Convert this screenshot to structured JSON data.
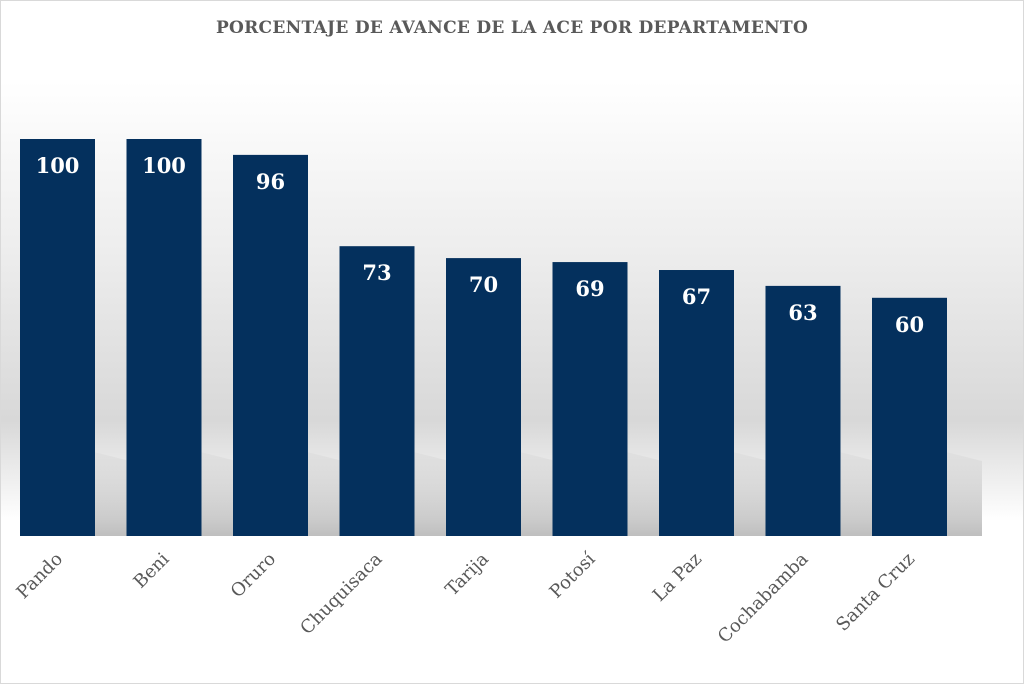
{
  "chart_data": {
    "type": "bar",
    "title": "PORCENTAJE DE AVANCE DE LA ACE POR DEPARTAMENTO",
    "categories": [
      "Pando",
      "Beni",
      "Oruro",
      "Chuquisaca",
      "Tarija",
      "Potosí",
      "La Paz",
      "Cochabamba",
      "Santa Cruz"
    ],
    "values": [
      100,
      100,
      96,
      73,
      70,
      69,
      67,
      63,
      60
    ],
    "value_labels": [
      "100",
      "100",
      "96",
      "73",
      "70",
      "69",
      "67",
      "63",
      "60"
    ],
    "xlabel": "",
    "ylabel": "",
    "ylim": [
      0,
      100
    ],
    "grid": false,
    "bar_color": "#04305d",
    "label_color": "#ffffff"
  }
}
